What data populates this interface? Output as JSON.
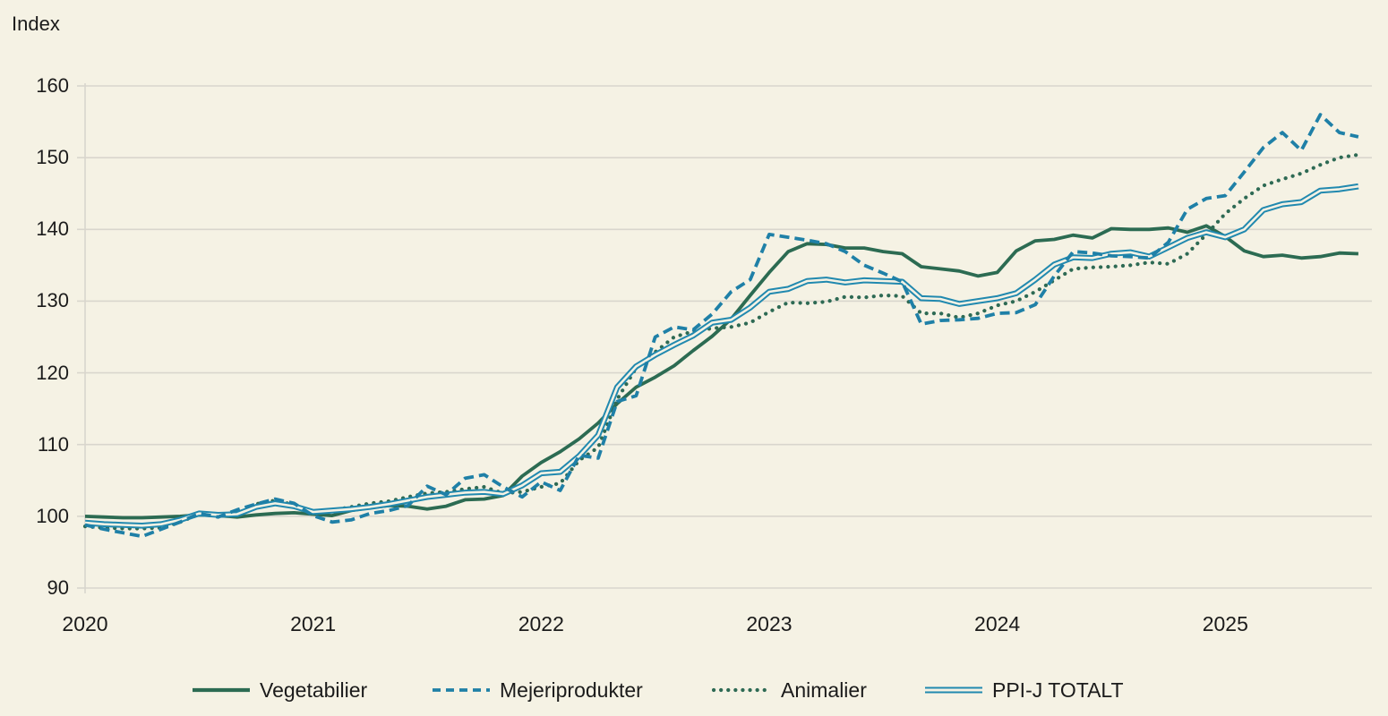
{
  "page": {
    "background": "#f5f2e4",
    "text_color": "#1b1b1b",
    "grid_color": "#d9d6cd"
  },
  "chart_data": {
    "type": "line",
    "title": "Index",
    "ylabel": "Index",
    "ylim": [
      90,
      160
    ],
    "yticks": [
      90,
      100,
      110,
      120,
      130,
      140,
      150,
      160
    ],
    "grid": "horizontal-only",
    "legend_position": "bottom",
    "x_unit": "month",
    "x_start": "2020-01",
    "x_end": "2025-08",
    "x_year_labels": [
      "2020",
      "2021",
      "2022",
      "2023",
      "2024",
      "2025"
    ],
    "series": [
      {
        "name": "Vegetabilier",
        "style": "solid",
        "color": "#2c6b52",
        "values": [
          100.0,
          99.9,
          99.8,
          99.8,
          99.9,
          100.0,
          100.2,
          100.1,
          99.9,
          100.2,
          100.4,
          100.5,
          100.3,
          100.1,
          100.8,
          101.2,
          101.5,
          101.4,
          101.0,
          101.4,
          102.3,
          102.4,
          102.9,
          105.6,
          107.5,
          109.0,
          110.8,
          113.0,
          115.7,
          118.0,
          119.4,
          121.0,
          123.1,
          125.1,
          127.5,
          130.8,
          134.0,
          136.9,
          138.0,
          137.9,
          137.4,
          137.4,
          136.9,
          136.6,
          134.8,
          134.5,
          134.2,
          133.5,
          134.0,
          137.0,
          138.4,
          138.6,
          139.2,
          138.8,
          140.1,
          140.0,
          140.0,
          140.2,
          139.6,
          140.5,
          139.0,
          137.0,
          136.2,
          136.4,
          136.0,
          136.2,
          136.7,
          136.6
        ]
      },
      {
        "name": "Mejeriprodukter",
        "style": "dashed",
        "color": "#1f80a7",
        "values": [
          98.8,
          98.2,
          97.7,
          97.2,
          98.2,
          99.2,
          100.4,
          99.9,
          100.9,
          101.7,
          102.4,
          101.8,
          100.1,
          99.2,
          99.5,
          100.4,
          100.8,
          101.5,
          104.2,
          103.0,
          105.3,
          105.8,
          104.1,
          102.7,
          104.8,
          103.6,
          108.5,
          108.1,
          116.0,
          116.8,
          125.0,
          126.4,
          126.0,
          128.2,
          131.3,
          133.0,
          139.3,
          138.9,
          138.5,
          138.0,
          136.9,
          135.0,
          133.9,
          132.7,
          126.8,
          127.3,
          127.4,
          127.6,
          128.3,
          128.4,
          129.5,
          133.5,
          136.9,
          136.7,
          136.3,
          136.2,
          136.0,
          138.2,
          142.8,
          144.3,
          144.7,
          148.0,
          151.4,
          153.5,
          151.0,
          156.0,
          153.5,
          152.9
        ]
      },
      {
        "name": "Animalier",
        "style": "dotted",
        "color": "#2e6a54",
        "values": [
          98.6,
          98.4,
          98.3,
          98.3,
          98.4,
          99.2,
          100.3,
          100.1,
          100.2,
          101.7,
          102.2,
          101.6,
          100.5,
          100.8,
          101.3,
          101.8,
          102.1,
          102.7,
          103.2,
          103.4,
          103.8,
          104.1,
          103.2,
          103.4,
          104.1,
          104.6,
          107.8,
          109.6,
          116.3,
          120.7,
          122.9,
          125.0,
          125.8,
          126.2,
          126.4,
          127.0,
          128.5,
          129.8,
          129.7,
          129.9,
          130.6,
          130.5,
          130.8,
          130.7,
          128.3,
          128.3,
          127.7,
          128.3,
          129.4,
          130.0,
          131.3,
          132.9,
          134.5,
          134.7,
          134.8,
          135.0,
          135.4,
          135.2,
          136.6,
          139.3,
          142.2,
          144.3,
          146.1,
          147.0,
          147.8,
          149.0,
          150.0,
          150.4
        ]
      },
      {
        "name": "PPI-J TOTALT",
        "style": "double",
        "color": "#2189af",
        "values": [
          99.1,
          98.9,
          98.8,
          98.7,
          98.9,
          99.5,
          100.4,
          100.2,
          100.3,
          101.3,
          101.8,
          101.4,
          100.6,
          100.8,
          101.0,
          101.3,
          101.7,
          102.2,
          102.7,
          103.0,
          103.3,
          103.4,
          103.1,
          104.3,
          106.0,
          106.2,
          108.4,
          111.3,
          118.0,
          120.9,
          122.5,
          123.9,
          125.2,
          127.0,
          127.4,
          129.1,
          131.3,
          131.7,
          132.8,
          133.0,
          132.6,
          132.9,
          132.8,
          132.7,
          130.4,
          130.3,
          129.6,
          130.0,
          130.4,
          131.1,
          133.0,
          135.1,
          136.1,
          136.0,
          136.6,
          136.8,
          136.2,
          137.5,
          138.8,
          139.6,
          138.9,
          140.0,
          142.7,
          143.5,
          143.8,
          145.4,
          145.6,
          146.0
        ]
      }
    ]
  },
  "legend": {
    "items": [
      "Vegetabilier",
      "Mejeriprodukter",
      "Animalier",
      "PPI-J TOTALT"
    ]
  }
}
